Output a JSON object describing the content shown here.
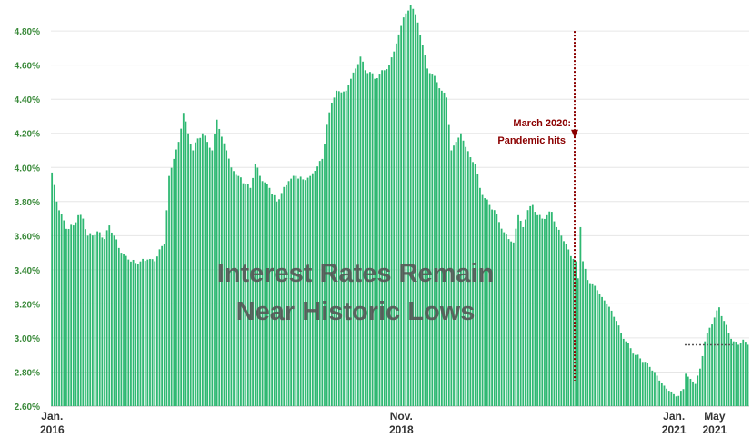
{
  "chart_data": {
    "type": "bar",
    "headline_lines": [
      "Interest Rates Remain",
      "Near Historic Lows"
    ],
    "ylim": [
      2.6,
      4.95
    ],
    "yticks": [
      "2.60%",
      "2.80%",
      "3.00%",
      "3.20%",
      "3.40%",
      "3.60%",
      "3.80%",
      "4.00%",
      "4.20%",
      "4.40%",
      "4.60%",
      "4.80%"
    ],
    "ytick_values": [
      2.6,
      2.8,
      3.0,
      3.2,
      3.4,
      3.6,
      3.8,
      4.0,
      4.2,
      4.4,
      4.6,
      4.8
    ],
    "xticks": [
      {
        "line1": "Jan.",
        "line2": "2016",
        "index": 0
      },
      {
        "line1": "Nov.",
        "line2": "2018",
        "index": 146
      },
      {
        "line1": "Jan.",
        "line2": "2021",
        "index": 260
      },
      {
        "line1": "May",
        "line2": "2021",
        "index": 277
      }
    ],
    "annotation": {
      "line1": "March 2020:",
      "line2": "Pandemic hits",
      "index": 219,
      "arrow_top": 4.8,
      "line_bottom": 2.75
    },
    "reference_line": {
      "value": 2.96,
      "from_index": 265,
      "to_index": 285
    },
    "bar_color": "#2eb872",
    "annotation_color": "#8b0000",
    "keypoints": [
      [
        0,
        3.97
      ],
      [
        2,
        3.8
      ],
      [
        6,
        3.64
      ],
      [
        9,
        3.66
      ],
      [
        11,
        3.72
      ],
      [
        13,
        3.7
      ],
      [
        15,
        3.6
      ],
      [
        20,
        3.62
      ],
      [
        22,
        3.58
      ],
      [
        24,
        3.66
      ],
      [
        26,
        3.6
      ],
      [
        29,
        3.5
      ],
      [
        32,
        3.46
      ],
      [
        35,
        3.44
      ],
      [
        40,
        3.46
      ],
      [
        43,
        3.45
      ],
      [
        45,
        3.52
      ],
      [
        47,
        3.55
      ],
      [
        49,
        3.95
      ],
      [
        51,
        4.05
      ],
      [
        53,
        4.15
      ],
      [
        55,
        4.32
      ],
      [
        57,
        4.2
      ],
      [
        59,
        4.1
      ],
      [
        61,
        4.17
      ],
      [
        63,
        4.2
      ],
      [
        65,
        4.15
      ],
      [
        67,
        4.1
      ],
      [
        69,
        4.28
      ],
      [
        71,
        4.18
      ],
      [
        73,
        4.1
      ],
      [
        75,
        4.0
      ],
      [
        78,
        3.95
      ],
      [
        81,
        3.9
      ],
      [
        83,
        3.88
      ],
      [
        85,
        4.02
      ],
      [
        88,
        3.92
      ],
      [
        91,
        3.88
      ],
      [
        94,
        3.8
      ],
      [
        96,
        3.85
      ],
      [
        99,
        3.92
      ],
      [
        102,
        3.95
      ],
      [
        105,
        3.93
      ],
      [
        108,
        3.95
      ],
      [
        110,
        3.98
      ],
      [
        113,
        4.05
      ],
      [
        115,
        4.25
      ],
      [
        117,
        4.38
      ],
      [
        119,
        4.45
      ],
      [
        121,
        4.44
      ],
      [
        123,
        4.45
      ],
      [
        125,
        4.52
      ],
      [
        127,
        4.58
      ],
      [
        129,
        4.65
      ],
      [
        131,
        4.57
      ],
      [
        133,
        4.56
      ],
      [
        135,
        4.52
      ],
      [
        137,
        4.55
      ],
      [
        139,
        4.57
      ],
      [
        141,
        4.6
      ],
      [
        143,
        4.68
      ],
      [
        145,
        4.78
      ],
      [
        147,
        4.88
      ],
      [
        149,
        4.92
      ],
      [
        150,
        4.95
      ],
      [
        151,
        4.93
      ],
      [
        153,
        4.85
      ],
      [
        155,
        4.72
      ],
      [
        157,
        4.58
      ],
      [
        159,
        4.55
      ],
      [
        161,
        4.5
      ],
      [
        163,
        4.45
      ],
      [
        165,
        4.41
      ],
      [
        167,
        4.1
      ],
      [
        169,
        4.15
      ],
      [
        171,
        4.2
      ],
      [
        173,
        4.12
      ],
      [
        175,
        4.06
      ],
      [
        177,
        4.02
      ],
      [
        179,
        3.88
      ],
      [
        181,
        3.82
      ],
      [
        183,
        3.78
      ],
      [
        185,
        3.75
      ],
      [
        187,
        3.68
      ],
      [
        189,
        3.62
      ],
      [
        191,
        3.58
      ],
      [
        193,
        3.56
      ],
      [
        195,
        3.72
      ],
      [
        197,
        3.65
      ],
      [
        199,
        3.75
      ],
      [
        201,
        3.78
      ],
      [
        203,
        3.72
      ],
      [
        205,
        3.7
      ],
      [
        207,
        3.72
      ],
      [
        209,
        3.74
      ],
      [
        211,
        3.65
      ],
      [
        213,
        3.6
      ],
      [
        215,
        3.55
      ],
      [
        217,
        3.48
      ],
      [
        219,
        3.45
      ],
      [
        220,
        3.35
      ],
      [
        221,
        3.65
      ],
      [
        222,
        3.45
      ],
      [
        224,
        3.34
      ],
      [
        226,
        3.32
      ],
      [
        228,
        3.28
      ],
      [
        230,
        3.24
      ],
      [
        232,
        3.2
      ],
      [
        234,
        3.16
      ],
      [
        236,
        3.1
      ],
      [
        238,
        3.03
      ],
      [
        240,
        2.98
      ],
      [
        242,
        2.94
      ],
      [
        244,
        2.9
      ],
      [
        246,
        2.88
      ],
      [
        248,
        2.86
      ],
      [
        250,
        2.83
      ],
      [
        252,
        2.8
      ],
      [
        254,
        2.75
      ],
      [
        256,
        2.72
      ],
      [
        258,
        2.69
      ],
      [
        260,
        2.67
      ],
      [
        262,
        2.66
      ],
      [
        264,
        2.7
      ],
      [
        265,
        2.79
      ],
      [
        267,
        2.76
      ],
      [
        269,
        2.73
      ],
      [
        271,
        2.82
      ],
      [
        273,
        2.98
      ],
      [
        275,
        3.06
      ],
      [
        277,
        3.12
      ],
      [
        279,
        3.18
      ],
      [
        281,
        3.1
      ],
      [
        283,
        3.03
      ],
      [
        285,
        2.98
      ],
      [
        287,
        2.96
      ],
      [
        289,
        2.99
      ],
      [
        291,
        2.96
      ]
    ]
  }
}
